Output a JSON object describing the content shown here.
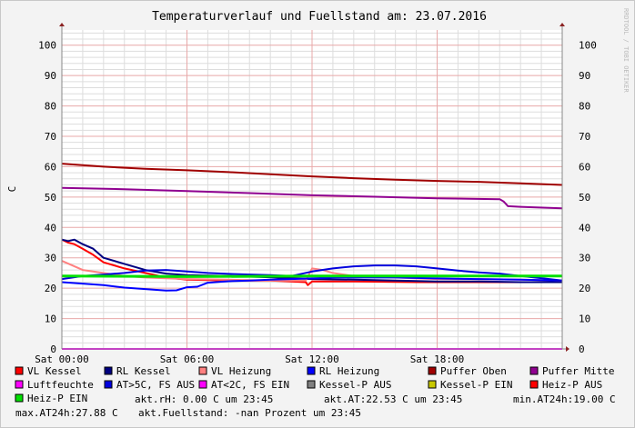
{
  "watermark": "RRDTOOL / TOBI OETIKER",
  "chart_data": {
    "type": "line",
    "title": "Temperaturverlauf und Fuellstand am: 23.07.2016",
    "xlabel": "",
    "ylabel": "C",
    "ylim": [
      0,
      105
    ],
    "xlim": [
      0,
      24
    ],
    "grid": true,
    "yticks": [
      0,
      10,
      20,
      30,
      40,
      50,
      60,
      70,
      80,
      90,
      100
    ],
    "xticks": [
      {
        "x": 0,
        "label": "Sat 00:00"
      },
      {
        "x": 6,
        "label": "Sat 06:00"
      },
      {
        "x": 12,
        "label": "Sat 12:00"
      },
      {
        "x": 18,
        "label": "Sat 18:00"
      }
    ],
    "series": [
      {
        "name": "VL Kessel",
        "color": "#ff0000",
        "width": 2,
        "points": [
          [
            0,
            36
          ],
          [
            0.3,
            35
          ],
          [
            0.6,
            34.5
          ],
          [
            1,
            33
          ],
          [
            1.5,
            31
          ],
          [
            2,
            28.5
          ],
          [
            3,
            26.5
          ],
          [
            4,
            25
          ],
          [
            5,
            23.5
          ],
          [
            6,
            22.8
          ],
          [
            8,
            22.5
          ],
          [
            10,
            22.5
          ],
          [
            11.7,
            22
          ],
          [
            11.8,
            21
          ],
          [
            12,
            22.2
          ],
          [
            14,
            22.2
          ],
          [
            17,
            22
          ],
          [
            19,
            22
          ],
          [
            22,
            22
          ],
          [
            24,
            22
          ]
        ]
      },
      {
        "name": "RL Kessel",
        "color": "#000080",
        "width": 2,
        "points": [
          [
            0,
            36
          ],
          [
            0.3,
            35.5
          ],
          [
            0.6,
            36
          ],
          [
            1,
            34.5
          ],
          [
            1.5,
            33
          ],
          [
            2,
            30
          ],
          [
            3,
            28
          ],
          [
            4,
            26
          ],
          [
            5,
            24.8
          ],
          [
            6,
            24.3
          ],
          [
            8,
            24
          ],
          [
            10,
            23.6
          ],
          [
            12,
            23
          ],
          [
            14,
            22.8
          ],
          [
            16,
            22.5
          ],
          [
            18,
            22.2
          ],
          [
            20,
            22.2
          ],
          [
            22,
            22
          ],
          [
            24,
            22
          ]
        ]
      },
      {
        "name": "VL Heizung",
        "color": "#ff8080",
        "width": 2,
        "points": [
          [
            0,
            29
          ],
          [
            0.5,
            27.5
          ],
          [
            1,
            26
          ],
          [
            2,
            25
          ],
          [
            3,
            24
          ],
          [
            4,
            23.5
          ],
          [
            6,
            23
          ],
          [
            8,
            22.8
          ],
          [
            10,
            22.5
          ],
          [
            11.7,
            22.5
          ],
          [
            12,
            26.5
          ],
          [
            12.5,
            26
          ],
          [
            13,
            25
          ],
          [
            14,
            24
          ],
          [
            16,
            23.5
          ],
          [
            18,
            23
          ],
          [
            20,
            23
          ],
          [
            22,
            22.8
          ],
          [
            24,
            22.5
          ]
        ]
      },
      {
        "name": "RL Heizung",
        "color": "#0000ff",
        "width": 2,
        "points": [
          [
            0,
            22
          ],
          [
            1,
            21.5
          ],
          [
            2,
            21
          ],
          [
            3,
            20.2
          ],
          [
            4,
            19.7
          ],
          [
            5,
            19.2
          ],
          [
            5.5,
            19.3
          ],
          [
            6,
            20.3
          ],
          [
            6.5,
            20.5
          ],
          [
            7,
            21.8
          ],
          [
            8,
            22.3
          ],
          [
            9,
            22.5
          ],
          [
            10,
            22.8
          ],
          [
            11,
            23
          ],
          [
            12,
            23.2
          ],
          [
            13,
            23.5
          ],
          [
            14,
            23.5
          ],
          [
            16,
            23.5
          ],
          [
            18,
            23.2
          ],
          [
            20,
            23
          ],
          [
            22,
            22.8
          ],
          [
            24,
            22.5
          ]
        ]
      },
      {
        "name": "Puffer Oben",
        "color": "#a00000",
        "width": 2,
        "points": [
          [
            0,
            61
          ],
          [
            2,
            60
          ],
          [
            4,
            59.3
          ],
          [
            6,
            58.8
          ],
          [
            8,
            58.2
          ],
          [
            10,
            57.5
          ],
          [
            12,
            56.8
          ],
          [
            14,
            56.2
          ],
          [
            16,
            55.7
          ],
          [
            18,
            55.3
          ],
          [
            20,
            55
          ],
          [
            22,
            54.5
          ],
          [
            24,
            54
          ]
        ]
      },
      {
        "name": "Puffer Mitte",
        "color": "#900090",
        "width": 2,
        "points": [
          [
            0,
            53
          ],
          [
            3,
            52.6
          ],
          [
            6,
            52
          ],
          [
            9,
            51.3
          ],
          [
            12,
            50.6
          ],
          [
            15,
            50.1
          ],
          [
            18,
            49.6
          ],
          [
            21,
            49.3
          ],
          [
            21.2,
            48.5
          ],
          [
            21.4,
            47
          ],
          [
            22,
            46.8
          ],
          [
            24,
            46.3
          ]
        ]
      },
      {
        "name": "Luftfeuchte",
        "color": "#ff00ff",
        "width": 2,
        "points": [
          [
            0,
            0
          ],
          [
            24,
            0
          ]
        ]
      },
      {
        "name": "AT>5C, FS AUS",
        "color": "#0000dd",
        "width": 2,
        "points": [
          [
            0,
            23
          ],
          [
            1,
            24
          ],
          [
            2,
            24.5
          ],
          [
            3,
            25
          ],
          [
            4,
            25.8
          ],
          [
            5,
            26
          ],
          [
            6,
            25.5
          ],
          [
            7,
            25
          ],
          [
            8,
            24.7
          ],
          [
            9,
            24.5
          ],
          [
            10,
            24.3
          ],
          [
            11,
            24
          ],
          [
            12,
            25.5
          ],
          [
            13,
            26.5
          ],
          [
            14,
            27.2
          ],
          [
            15,
            27.5
          ],
          [
            16,
            27.5
          ],
          [
            17,
            27.2
          ],
          [
            18,
            26.5
          ],
          [
            19,
            25.8
          ],
          [
            20,
            25.2
          ],
          [
            21,
            24.8
          ],
          [
            22,
            24
          ],
          [
            23,
            23.3
          ],
          [
            24,
            22.5
          ]
        ]
      },
      {
        "name": "AT<2C, FS EIN",
        "color": "#ff00ff",
        "width": 0,
        "points": []
      },
      {
        "name": "Kessel-P AUS",
        "color": "#808080",
        "width": 0,
        "points": []
      },
      {
        "name": "Kessel-P EIN",
        "color": "#c8c800",
        "width": 0,
        "points": []
      },
      {
        "name": "Heiz-P AUS",
        "color": "#ff0000",
        "width": 0,
        "points": []
      },
      {
        "name": "Heiz-P EIN",
        "color": "#00e000",
        "width": 3,
        "points": [
          [
            0,
            24
          ],
          [
            6,
            23.8
          ],
          [
            12,
            24
          ],
          [
            18,
            24
          ],
          [
            24,
            24
          ]
        ]
      }
    ]
  },
  "legend_rows": [
    [
      "VL Kessel",
      "RL Kessel",
      "VL Heizung",
      "RL Heizung",
      "Puffer Oben",
      "Puffer Mitte"
    ],
    [
      "Luftfeuchte",
      "AT>5C, FS AUS",
      "AT<2C, FS EIN",
      "Kessel-P AUS",
      "Kessel-P EIN",
      "Heiz-P AUS"
    ],
    [
      "Heiz-P EIN"
    ]
  ],
  "stats": {
    "rh": "akt.rH: 0.00 C um 23:45",
    "at": "akt.AT:22.53 C um 23:45",
    "min": "min.AT24h:19.00 C",
    "max": "max.AT24h:27.88 C",
    "fuell": "akt.Fuellstand: -nan Prozent um 23:45"
  }
}
